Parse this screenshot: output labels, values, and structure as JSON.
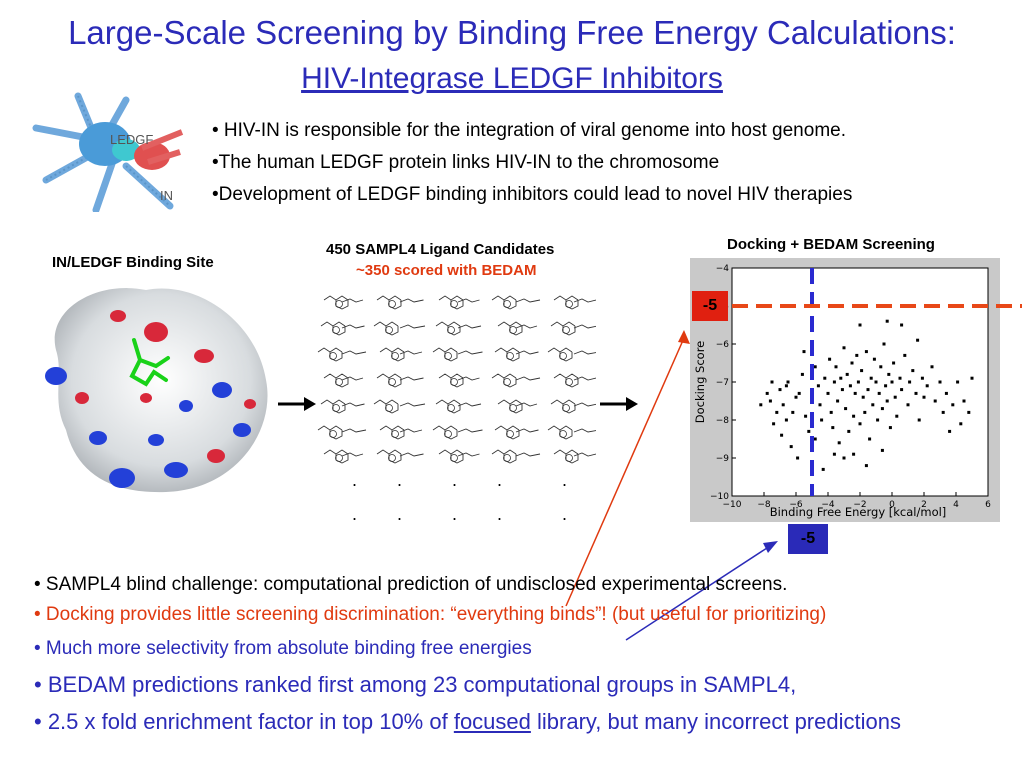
{
  "title": {
    "line1": "Large-Scale Screening by Binding Free Energy Calculations:",
    "line2": "HIV-Integrase LEDGF Inhibitors"
  },
  "top_bullets": [
    "• HIV-IN is responsible for the integration of viral genome into host genome.",
    "•The human LEDGF protein links HIV-IN to the chromosome",
    "•Development of LEDGF binding inhibitors could lead to novel HIV therapies"
  ],
  "protein_labels": {
    "ledgf": "LEDGF",
    "in": "IN"
  },
  "binding_site_label": "IN/LEDGF Binding Site",
  "ligands": {
    "title": "450 SAMPL4 Ligand Candidates",
    "subtitle": "~350 scored with BEDAM"
  },
  "screening_label": "Docking + BEDAM Screening",
  "threshold_labels": {
    "docking": "-5",
    "bedam": "-5"
  },
  "colors": {
    "title": "#2b2bb8",
    "red": "#e03a10",
    "marker": "#e02010",
    "blue_box": "#2a2ab8"
  },
  "chart_data": {
    "type": "scatter",
    "xlabel": "Binding Free Energy [kcal/mol]",
    "ylabel": "Docking Score",
    "xlim": [
      -10,
      6
    ],
    "ylim": [
      -10,
      -4
    ],
    "xticks": [
      -10,
      -8,
      -6,
      -4,
      -2,
      0,
      2,
      4,
      6
    ],
    "yticks": [
      -4,
      -5,
      -6,
      -7,
      -8,
      -9,
      -10
    ],
    "threshold_x": -5,
    "threshold_y": -5,
    "points": [
      [
        -7.6,
        -7.5
      ],
      [
        -7.0,
        -7.2
      ],
      [
        -6.8,
        -7.6
      ],
      [
        -6.5,
        -7.0
      ],
      [
        -6.2,
        -7.8
      ],
      [
        -7.4,
        -8.1
      ],
      [
        -6.9,
        -8.4
      ],
      [
        -6.3,
        -8.7
      ],
      [
        -5.8,
        -7.3
      ],
      [
        -5.6,
        -6.8
      ],
      [
        -5.4,
        -7.9
      ],
      [
        -5.2,
        -8.3
      ],
      [
        -5.5,
        -6.2
      ],
      [
        -6.0,
        -7.4
      ],
      [
        -6.6,
        -7.1
      ],
      [
        -7.2,
        -7.8
      ],
      [
        -4.8,
        -6.6
      ],
      [
        -4.6,
        -7.1
      ],
      [
        -4.5,
        -7.6
      ],
      [
        -4.4,
        -8.0
      ],
      [
        -4.2,
        -6.9
      ],
      [
        -4.0,
        -7.3
      ],
      [
        -3.9,
        -6.4
      ],
      [
        -3.8,
        -7.8
      ],
      [
        -3.7,
        -8.2
      ],
      [
        -3.6,
        -7.0
      ],
      [
        -3.5,
        -6.6
      ],
      [
        -3.4,
        -7.5
      ],
      [
        -3.3,
        -8.6
      ],
      [
        -3.2,
        -6.9
      ],
      [
        -3.1,
        -7.2
      ],
      [
        -3.0,
        -6.1
      ],
      [
        -2.9,
        -7.7
      ],
      [
        -2.8,
        -6.8
      ],
      [
        -2.7,
        -8.3
      ],
      [
        -2.6,
        -7.1
      ],
      [
        -2.5,
        -6.5
      ],
      [
        -2.4,
        -7.9
      ],
      [
        -2.3,
        -7.3
      ],
      [
        -2.2,
        -6.3
      ],
      [
        -2.1,
        -7.0
      ],
      [
        -2.0,
        -8.1
      ],
      [
        -1.9,
        -6.7
      ],
      [
        -1.8,
        -7.4
      ],
      [
        -1.7,
        -7.8
      ],
      [
        -1.6,
        -6.2
      ],
      [
        -1.5,
        -7.2
      ],
      [
        -1.4,
        -8.5
      ],
      [
        -1.3,
        -6.9
      ],
      [
        -1.2,
        -7.6
      ],
      [
        -1.1,
        -6.4
      ],
      [
        -1.0,
        -7.0
      ],
      [
        -0.9,
        -8.0
      ],
      [
        -0.8,
        -7.3
      ],
      [
        -0.7,
        -6.6
      ],
      [
        -0.6,
        -7.7
      ],
      [
        -0.5,
        -6.0
      ],
      [
        -0.4,
        -7.1
      ],
      [
        -0.3,
        -7.5
      ],
      [
        -0.2,
        -6.8
      ],
      [
        -0.1,
        -8.2
      ],
      [
        0.0,
        -7.0
      ],
      [
        0.1,
        -6.5
      ],
      [
        0.2,
        -7.4
      ],
      [
        0.3,
        -7.9
      ],
      [
        0.5,
        -6.9
      ],
      [
        0.6,
        -7.2
      ],
      [
        0.8,
        -6.3
      ],
      [
        1.0,
        -7.6
      ],
      [
        1.1,
        -7.0
      ],
      [
        1.3,
        -6.7
      ],
      [
        1.5,
        -7.3
      ],
      [
        1.7,
        -8.0
      ],
      [
        1.9,
        -6.9
      ],
      [
        2.0,
        -7.4
      ],
      [
        2.2,
        -7.1
      ],
      [
        2.5,
        -6.6
      ],
      [
        2.7,
        -7.5
      ],
      [
        3.0,
        -7.0
      ],
      [
        3.2,
        -7.8
      ],
      [
        3.4,
        -7.3
      ],
      [
        3.6,
        -8.3
      ],
      [
        3.8,
        -7.6
      ],
      [
        4.1,
        -7.0
      ],
      [
        4.3,
        -8.1
      ],
      [
        4.5,
        -7.5
      ],
      [
        4.8,
        -7.8
      ],
      [
        5.0,
        -6.9
      ],
      [
        -3.0,
        -9.0
      ],
      [
        -2.4,
        -8.9
      ],
      [
        -1.6,
        -9.2
      ],
      [
        -0.6,
        -8.8
      ],
      [
        -4.3,
        -9.3
      ],
      [
        -3.6,
        -8.9
      ],
      [
        -2.0,
        -5.5
      ],
      [
        -0.3,
        -5.4
      ],
      [
        0.6,
        -5.5
      ],
      [
        1.6,
        -5.9
      ],
      [
        -4.8,
        -8.5
      ],
      [
        -5.9,
        -9.0
      ],
      [
        -6.6,
        -8.0
      ],
      [
        -7.8,
        -7.3
      ],
      [
        -8.2,
        -7.6
      ],
      [
        -7.5,
        -7.0
      ]
    ]
  }
}
